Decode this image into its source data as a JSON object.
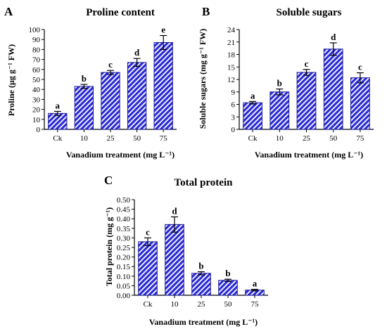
{
  "chart_data": [
    {
      "type": "bar",
      "panel_letter": "A",
      "title": "Proline content",
      "xlabel": "Vanadium treatment (mg L⁻¹)",
      "ylabel": "Proline (µg g⁻¹ FW)",
      "categories": [
        "Ck",
        "10",
        "25",
        "50",
        "75"
      ],
      "values": [
        16,
        43,
        57,
        67,
        87
      ],
      "errors": [
        2,
        2,
        2,
        4,
        7
      ],
      "letters": [
        "a",
        "b",
        "c",
        "d",
        "e"
      ],
      "ylim": [
        0,
        100
      ],
      "yticks": [
        0,
        10,
        20,
        30,
        40,
        50,
        60,
        70,
        80,
        90,
        100
      ],
      "ytick_labels": [
        "0",
        "10",
        "20",
        "30",
        "40",
        "50",
        "60",
        "70",
        "80",
        "90",
        "100"
      ],
      "bar_color": "#2b2bd6",
      "hatch": "diagonal",
      "grid": false
    },
    {
      "type": "bar",
      "panel_letter": "B",
      "title": "Soluble sugars",
      "xlabel": "Vanadium treatment (mg L⁻¹)",
      "ylabel": "Soluble sugars (mg g⁻¹ FW)",
      "categories": [
        "Ck",
        "10",
        "25",
        "50",
        "75"
      ],
      "values": [
        6.4,
        9.0,
        13.7,
        19.3,
        12.4
      ],
      "errors": [
        0.3,
        0.7,
        0.7,
        1.5,
        1.2
      ],
      "letters": [
        "a",
        "b",
        "c",
        "d",
        "c"
      ],
      "ylim": [
        0,
        24
      ],
      "yticks": [
        0,
        3,
        6,
        9,
        12,
        15,
        18,
        21,
        24
      ],
      "ytick_labels": [
        "0",
        "3",
        "6",
        "9",
        "12",
        "15",
        "18",
        "21",
        "24"
      ],
      "bar_color": "#2b2bd6",
      "hatch": "diagonal",
      "grid": false
    },
    {
      "type": "bar",
      "panel_letter": "C",
      "title": "Total protein",
      "xlabel": "Vanadium treatment (mg L⁻¹)",
      "ylabel": "Total protein (mg g⁻¹)",
      "categories": [
        "Ck",
        "10",
        "25",
        "50",
        "75"
      ],
      "values": [
        0.28,
        0.37,
        0.115,
        0.078,
        0.027
      ],
      "errors": [
        0.02,
        0.04,
        0.008,
        0.006,
        0.004
      ],
      "letters": [
        "c",
        "d",
        "b",
        "b",
        "a"
      ],
      "ylim": [
        0,
        0.5
      ],
      "yticks": [
        0,
        0.05,
        0.1,
        0.15,
        0.2,
        0.25,
        0.3,
        0.35,
        0.4,
        0.45,
        0.5
      ],
      "ytick_labels": [
        "0.00",
        "0.05",
        "0.10",
        "0.15",
        "0.20",
        "0.25",
        "0.30",
        "0.35",
        "0.40",
        "0.45",
        "0.50"
      ],
      "bar_color": "#2b2bd6",
      "hatch": "diagonal",
      "grid": false
    }
  ]
}
